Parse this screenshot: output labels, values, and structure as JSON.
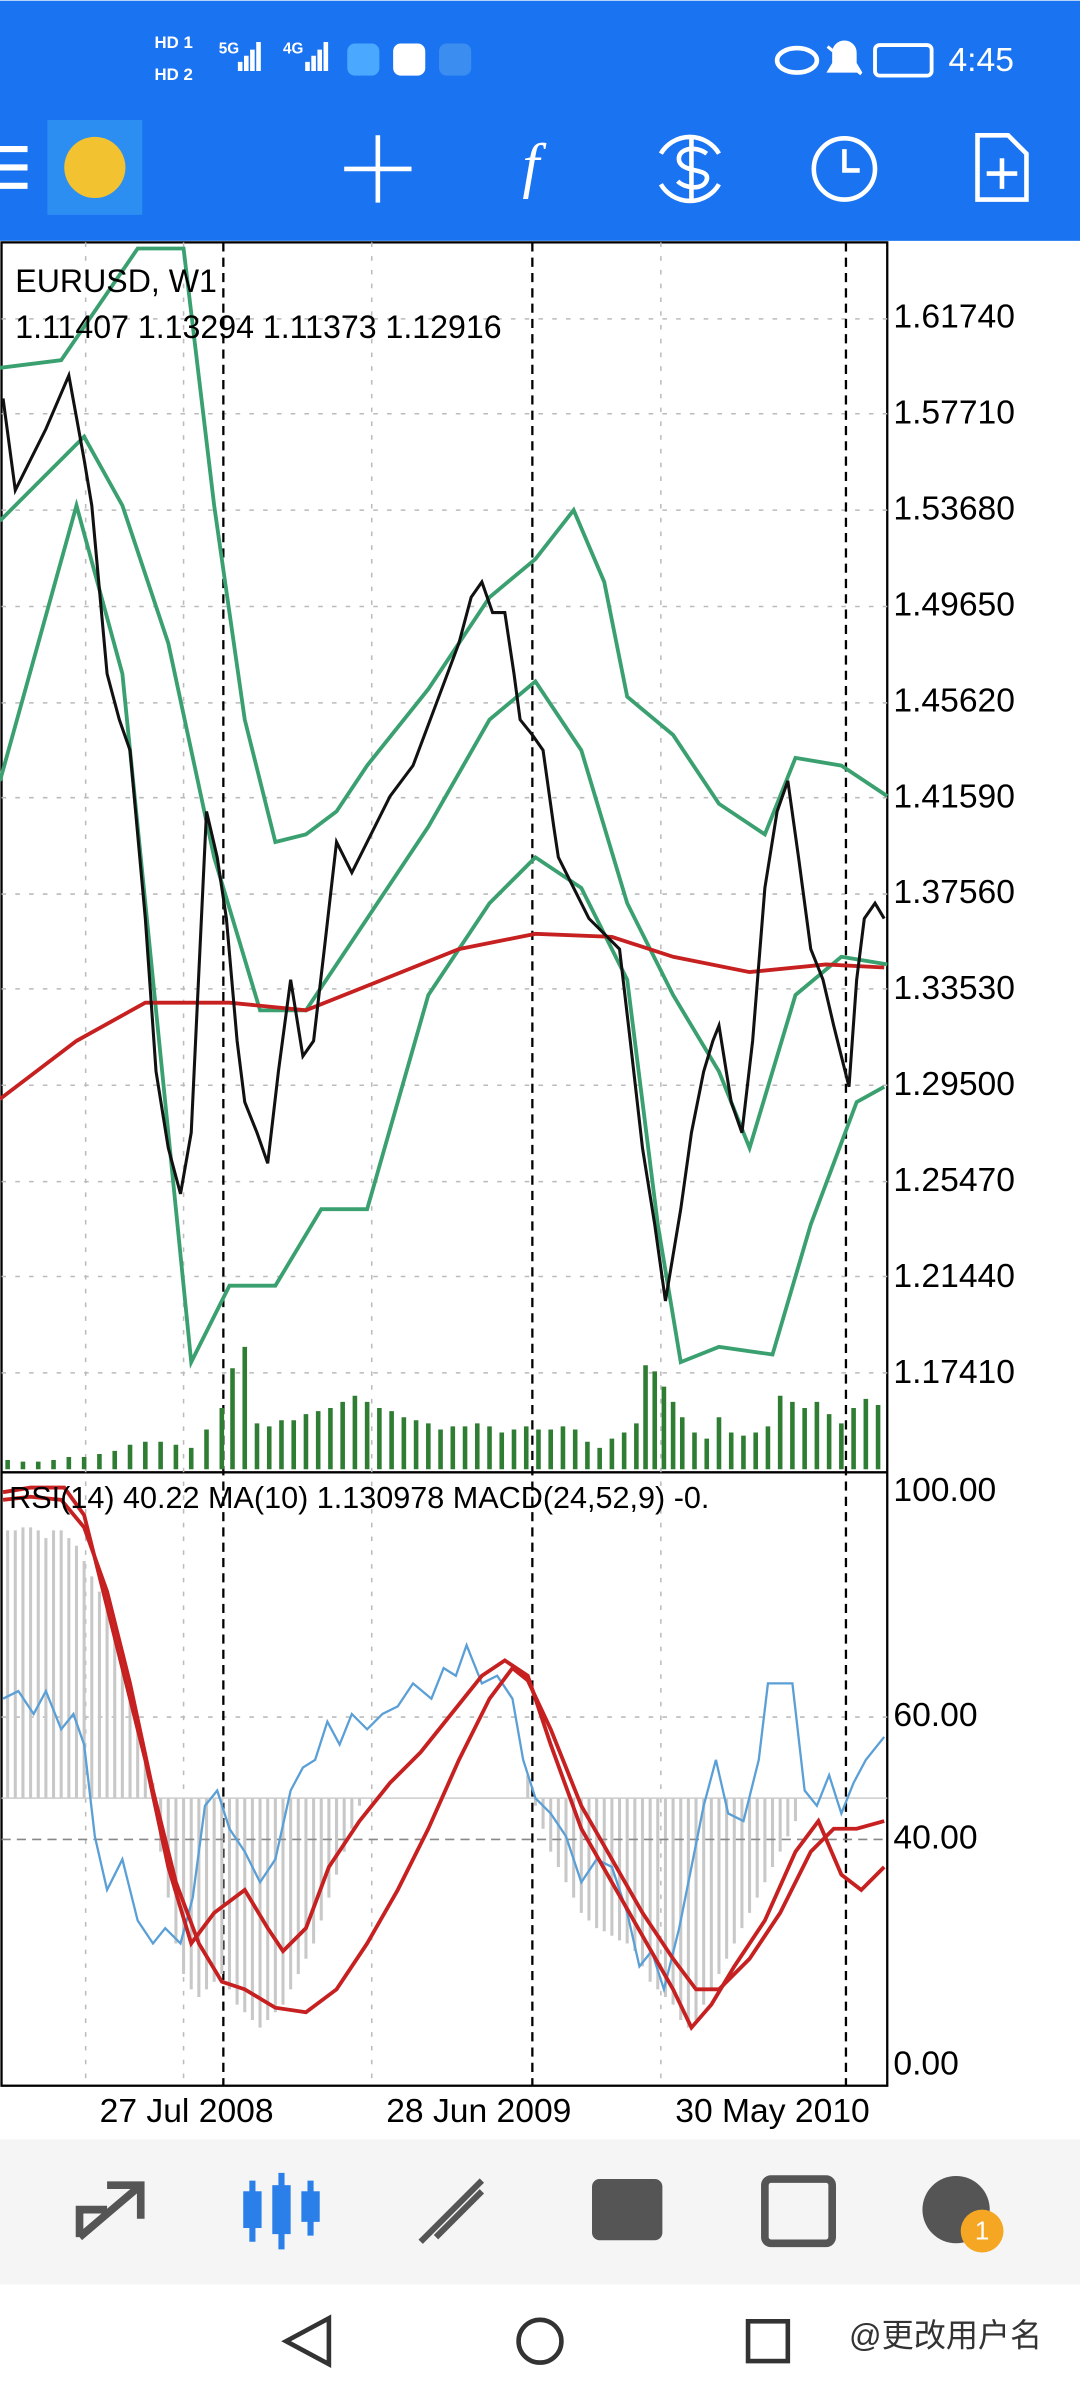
{
  "status_bar": {
    "hd": [
      "HD 1",
      "HD 2"
    ],
    "network": [
      "5G",
      "4G"
    ],
    "time": "4:45"
  },
  "chart": {
    "symbol": "EURUSD, W1",
    "ohlc": "1.11407 1.13294 1.11373 1.12916",
    "price_labels": [
      "1.61740",
      "1.57710",
      "1.53680",
      "1.49650",
      "1.45620",
      "1.41590",
      "1.37560",
      "1.33530",
      "1.29500",
      "1.25470",
      "1.21440",
      "1.17410"
    ],
    "indicator_label": "RSI(14) 40.22 MA(10) 1.130978 MACD(24,52,9) -0.",
    "osc_labels": [
      "100.00",
      "60.00",
      "40.00",
      "0.00"
    ],
    "dates": [
      "27 Jul 2008",
      "28 Jun 2009",
      "30 May 2010"
    ]
  },
  "nav": {
    "badge": "1"
  },
  "watermark": "@更改用户名"
}
